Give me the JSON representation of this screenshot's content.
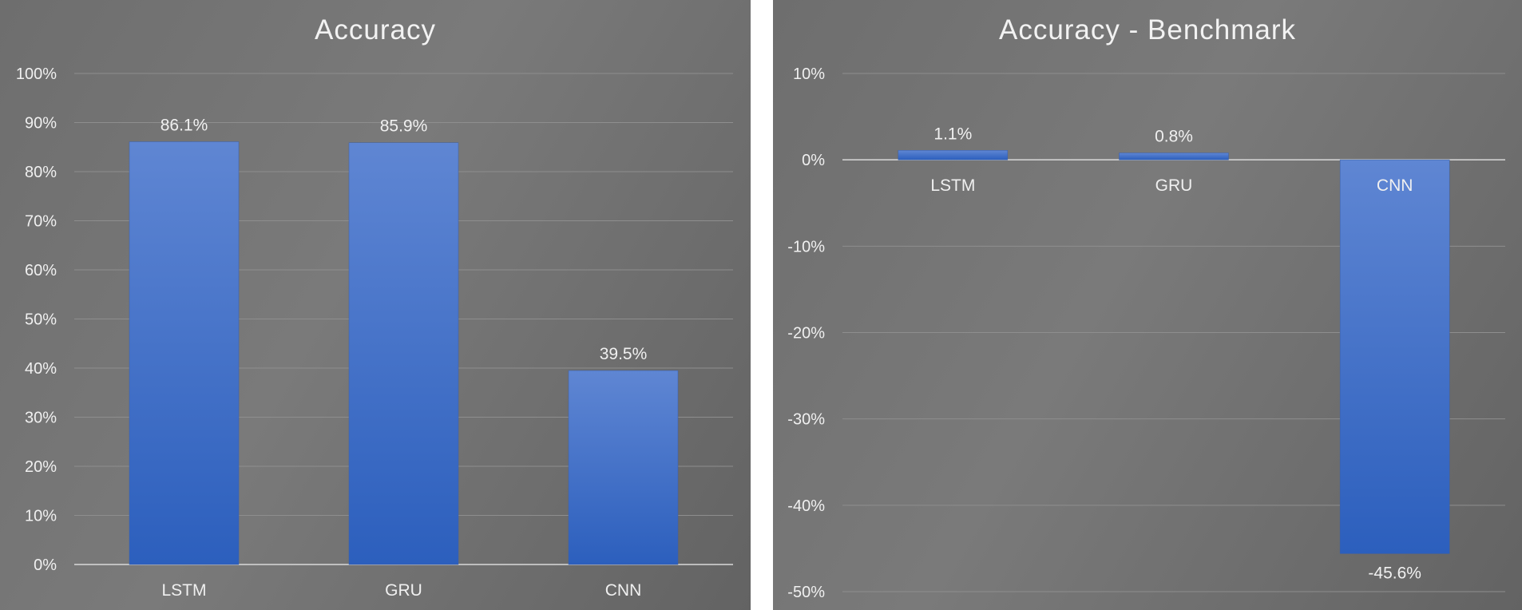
{
  "colors": {
    "bar_top": "#5f86d3",
    "bar_bottom": "#2c5fbd",
    "grid": "#8e8e8e",
    "axis": "#d9d9d9",
    "text": "#f0f0f0"
  },
  "chart_data": [
    {
      "type": "bar",
      "title": "Accuracy",
      "categories": [
        "LSTM",
        "GRU",
        "CNN"
      ],
      "values": [
        86.1,
        85.9,
        39.5
      ],
      "value_labels": [
        "86.1%",
        "85.9%",
        "39.5%"
      ],
      "ylim": [
        0,
        100
      ],
      "yticks": [
        0,
        10,
        20,
        30,
        40,
        50,
        60,
        70,
        80,
        90,
        100
      ],
      "ytick_labels": [
        "0%",
        "10%",
        "20%",
        "30%",
        "40%",
        "50%",
        "60%",
        "70%",
        "80%",
        "90%",
        "100%"
      ],
      "xlabel": "",
      "ylabel": "",
      "grid": true,
      "legend": "none"
    },
    {
      "type": "bar",
      "title": "Accuracy - Benchmark",
      "categories": [
        "LSTM",
        "GRU",
        "CNN"
      ],
      "values": [
        1.1,
        0.8,
        -45.6
      ],
      "value_labels": [
        "1.1%",
        "0.8%",
        "-45.6%"
      ],
      "ylim": [
        -50,
        10
      ],
      "yticks": [
        -50,
        -40,
        -30,
        -20,
        -10,
        0,
        10
      ],
      "ytick_labels": [
        "-50%",
        "-40%",
        "-30%",
        "-20%",
        "-10%",
        "0%",
        "10%"
      ],
      "xlabel": "",
      "ylabel": "",
      "grid": true,
      "legend": "none"
    }
  ]
}
